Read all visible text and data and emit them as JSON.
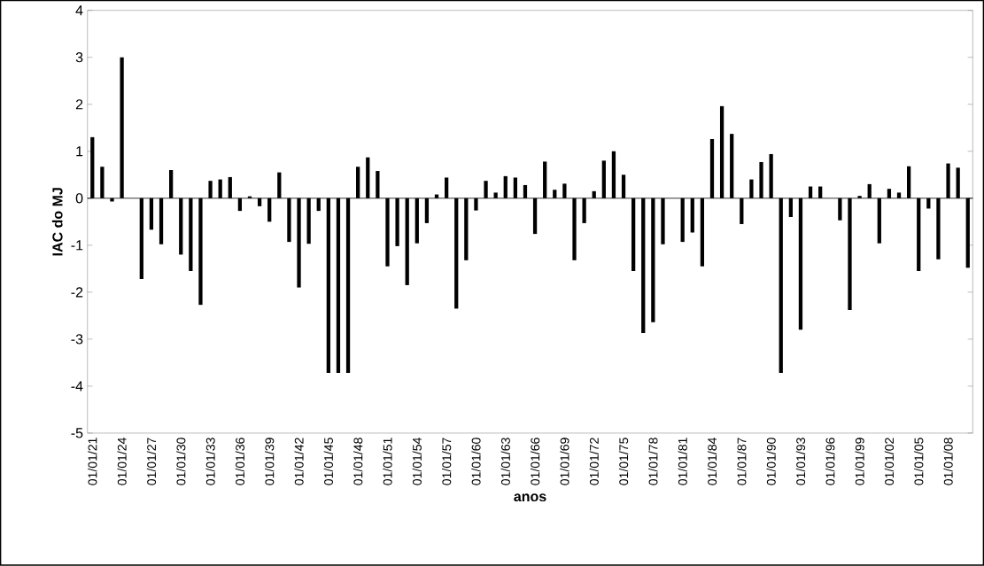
{
  "chart_data": {
    "type": "bar",
    "xlabel": "anos",
    "ylabel": "IAC do MJ",
    "color": "#000000",
    "categories": [
      "01/01/21",
      null,
      null,
      "01/01/24",
      null,
      null,
      "01/01/27",
      null,
      null,
      "01/01/30",
      null,
      null,
      "01/01/33",
      null,
      null,
      "01/01/36",
      null,
      null,
      "01/01/39",
      null,
      null,
      "01/01/42",
      null,
      null,
      "01/01/45",
      null,
      null,
      "01/01/48",
      null,
      null,
      "01/01/51",
      null,
      null,
      "01/01/54",
      null,
      null,
      "01/01/57",
      null,
      null,
      "01/01/60",
      null,
      null,
      "01/01/63",
      null,
      null,
      "01/01/66",
      null,
      null,
      "01/01/69",
      null,
      null,
      "01/01/72",
      null,
      null,
      "01/01/75",
      null,
      null,
      "01/01/78",
      null,
      null,
      "01/01/81",
      null,
      null,
      "01/01/84",
      null,
      null,
      "01/01/87",
      null,
      null,
      "01/01/90",
      null,
      null,
      "01/01/93",
      null,
      null,
      "01/01/96",
      null,
      null,
      "01/01/99",
      null,
      null,
      "01/01/02",
      null,
      null,
      "01/01/05",
      null,
      null,
      "01/01/08",
      null,
      null
    ],
    "values": [
      1.3,
      0.67,
      -0.07,
      3.0,
      0,
      -1.72,
      -0.67,
      -0.98,
      0.6,
      -1.2,
      -1.55,
      -2.27,
      0.37,
      0.4,
      0.45,
      -0.27,
      0.04,
      -0.17,
      -0.5,
      0.55,
      -0.93,
      -1.9,
      -0.97,
      -0.27,
      -3.72,
      -3.72,
      -3.72,
      0.67,
      0.87,
      0.58,
      -1.45,
      -1.02,
      -1.85,
      -0.96,
      -0.53,
      0.08,
      0.44,
      -2.35,
      -1.32,
      -0.26,
      0.37,
      0.12,
      0.47,
      0.44,
      0.28,
      -0.76,
      0.78,
      0.18,
      0.31,
      -1.32,
      -0.53,
      0.15,
      0.8,
      1.0,
      0.5,
      -1.55,
      -2.87,
      -2.64,
      -0.98,
      0,
      -0.93,
      -0.73,
      -1.45,
      1.26,
      1.96,
      1.37,
      -0.55,
      0.4,
      0.77,
      0.94,
      -3.72,
      -0.4,
      -2.8,
      0.25,
      0.25,
      0,
      -0.47,
      -2.38,
      0.05,
      0.3,
      -0.96,
      0.2,
      0.12,
      0.68,
      -1.55,
      -0.22,
      -1.3,
      0.74,
      0.65,
      -1.48
    ],
    "ylim": [
      -5,
      4
    ],
    "yticks": [
      -5,
      -4,
      -3,
      -2,
      -1,
      0,
      1,
      2,
      3,
      4
    ]
  }
}
